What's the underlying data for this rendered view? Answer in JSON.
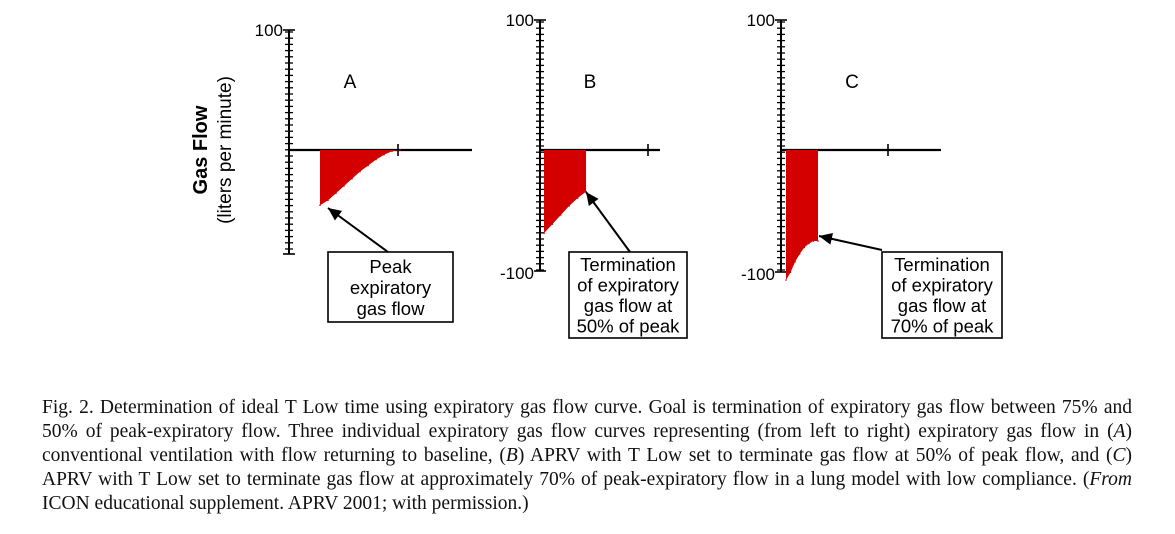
{
  "chart_data": [
    {
      "type": "area",
      "panel_label": "A",
      "ylabel_bold": "Gas Flow",
      "ylabel_sub": "(liters per minute)",
      "ytick_labels": [
        "100"
      ],
      "ylim": [
        -100,
        100
      ],
      "x": [
        0,
        0.1,
        0.2,
        0.3,
        0.4,
        0.5,
        0.6,
        0.7,
        0.8,
        0.9,
        1.0
      ],
      "values": [
        -46,
        -42,
        -36,
        -30,
        -24,
        -18,
        -13,
        -8,
        -4,
        -1,
        0
      ],
      "annotation": [
        "Peak",
        "expiratory",
        "gas flow"
      ]
    },
    {
      "type": "area",
      "panel_label": "B",
      "ytick_labels": [
        "100",
        "-100"
      ],
      "ylim": [
        -100,
        100
      ],
      "x": [
        0,
        0.1,
        0.2,
        0.3,
        0.4,
        0.5
      ],
      "values": [
        -64,
        -57,
        -50,
        -43,
        -37,
        -32
      ],
      "annotation": [
        "Termination",
        "of expiratory",
        "gas flow at",
        "50% of peak"
      ]
    },
    {
      "type": "area",
      "panel_label": "C",
      "ytick_labels": [
        "100",
        "-100"
      ],
      "ylim": [
        -100,
        100
      ],
      "x": [
        0,
        0.05,
        0.1,
        0.15,
        0.2,
        0.25,
        0.3,
        0.35
      ],
      "values": [
        -100,
        -94,
        -86,
        -80,
        -75,
        -72,
        -70,
        -70
      ],
      "annotation": [
        "Termination",
        "of expiratory",
        "gas flow at",
        "70% of peak"
      ]
    }
  ],
  "caption": {
    "p1": "Fig. 2. Determination of ideal T Low time using expiratory gas flow curve. Goal is termination of expiratory gas flow between 75% and 50% of peak-expiratory flow. Three individual expiratory gas flow curves representing (from left to right) expiratory gas flow in (",
    "a": "A",
    "p2": ") conventional ventilation with flow returning to baseline, (",
    "b": "B",
    "p3": ") APRV with T Low set to terminate gas flow at 50% of peak flow, and (",
    "c": "C",
    "p4": ") APRV with T Low set to terminate gas flow at approximately 70% of peak-expiratory flow in a lung model with low compliance. (",
    "from": "From",
    "p5": " ICON educational supplement. APRV 2001; with permission.)"
  },
  "colors": {
    "fill": "#d40000",
    "line": "#000000"
  }
}
